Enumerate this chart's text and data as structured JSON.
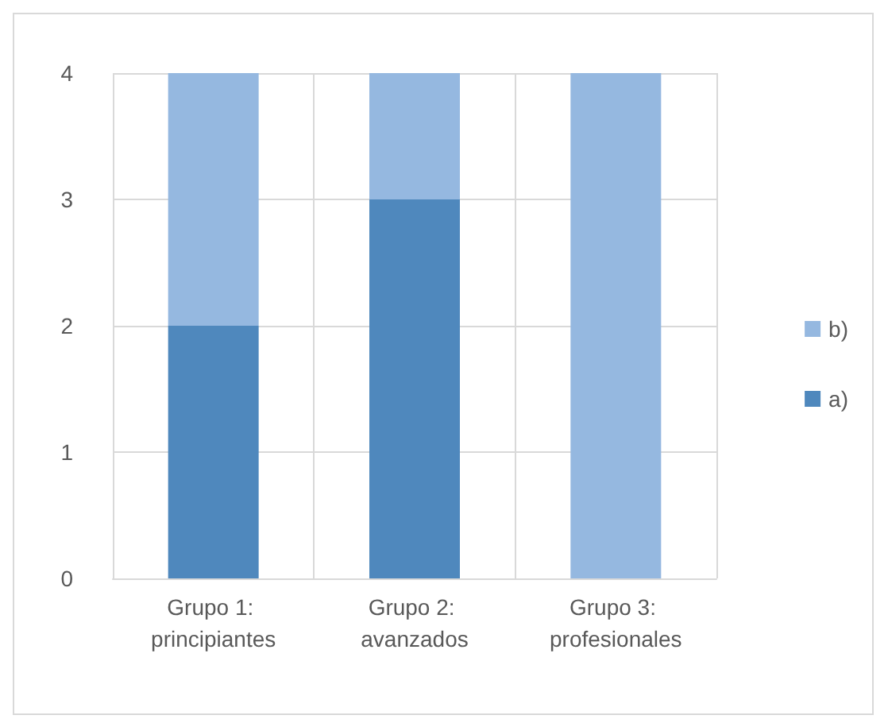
{
  "chart_data": {
    "type": "bar",
    "stacked": true,
    "categories": [
      "Grupo 1: principiantes",
      "Grupo 2: avanzados",
      "Grupo 3: profesionales"
    ],
    "series": [
      {
        "name": "a)",
        "color": "#4f88bd",
        "values": [
          2,
          3,
          0
        ]
      },
      {
        "name": "b)",
        "color": "#95b8e0",
        "values": [
          2,
          1,
          4
        ]
      }
    ],
    "ylim": [
      0,
      4
    ],
    "yticks": [
      0,
      1,
      2,
      3,
      4
    ],
    "grid": true,
    "legend": "right"
  }
}
